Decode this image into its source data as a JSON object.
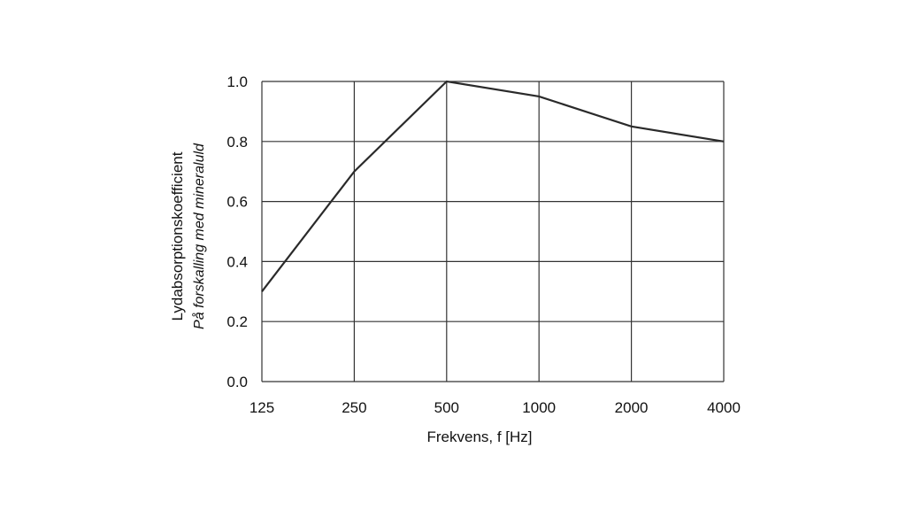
{
  "chart_data": {
    "type": "line",
    "title": "",
    "xlabel": "Frekvens, f [Hz]",
    "ylabel": "Lydabsorptionskoefficient",
    "ylabel_sub": "På forskalling med mineraluld",
    "categories": [
      "125",
      "250",
      "500",
      "1000",
      "2000",
      "4000"
    ],
    "x_scale": "log2",
    "ylim": [
      0.0,
      1.0
    ],
    "y_ticks": [
      "0.0",
      "0.2",
      "0.4",
      "0.6",
      "0.8",
      "1.0"
    ],
    "grid": true,
    "series": [
      {
        "values": [
          0.3,
          0.7,
          1.0,
          0.95,
          0.85,
          0.8
        ]
      }
    ],
    "colors": {
      "line": "#2a2a2a",
      "grid": "#333333",
      "text": "#111111"
    }
  }
}
